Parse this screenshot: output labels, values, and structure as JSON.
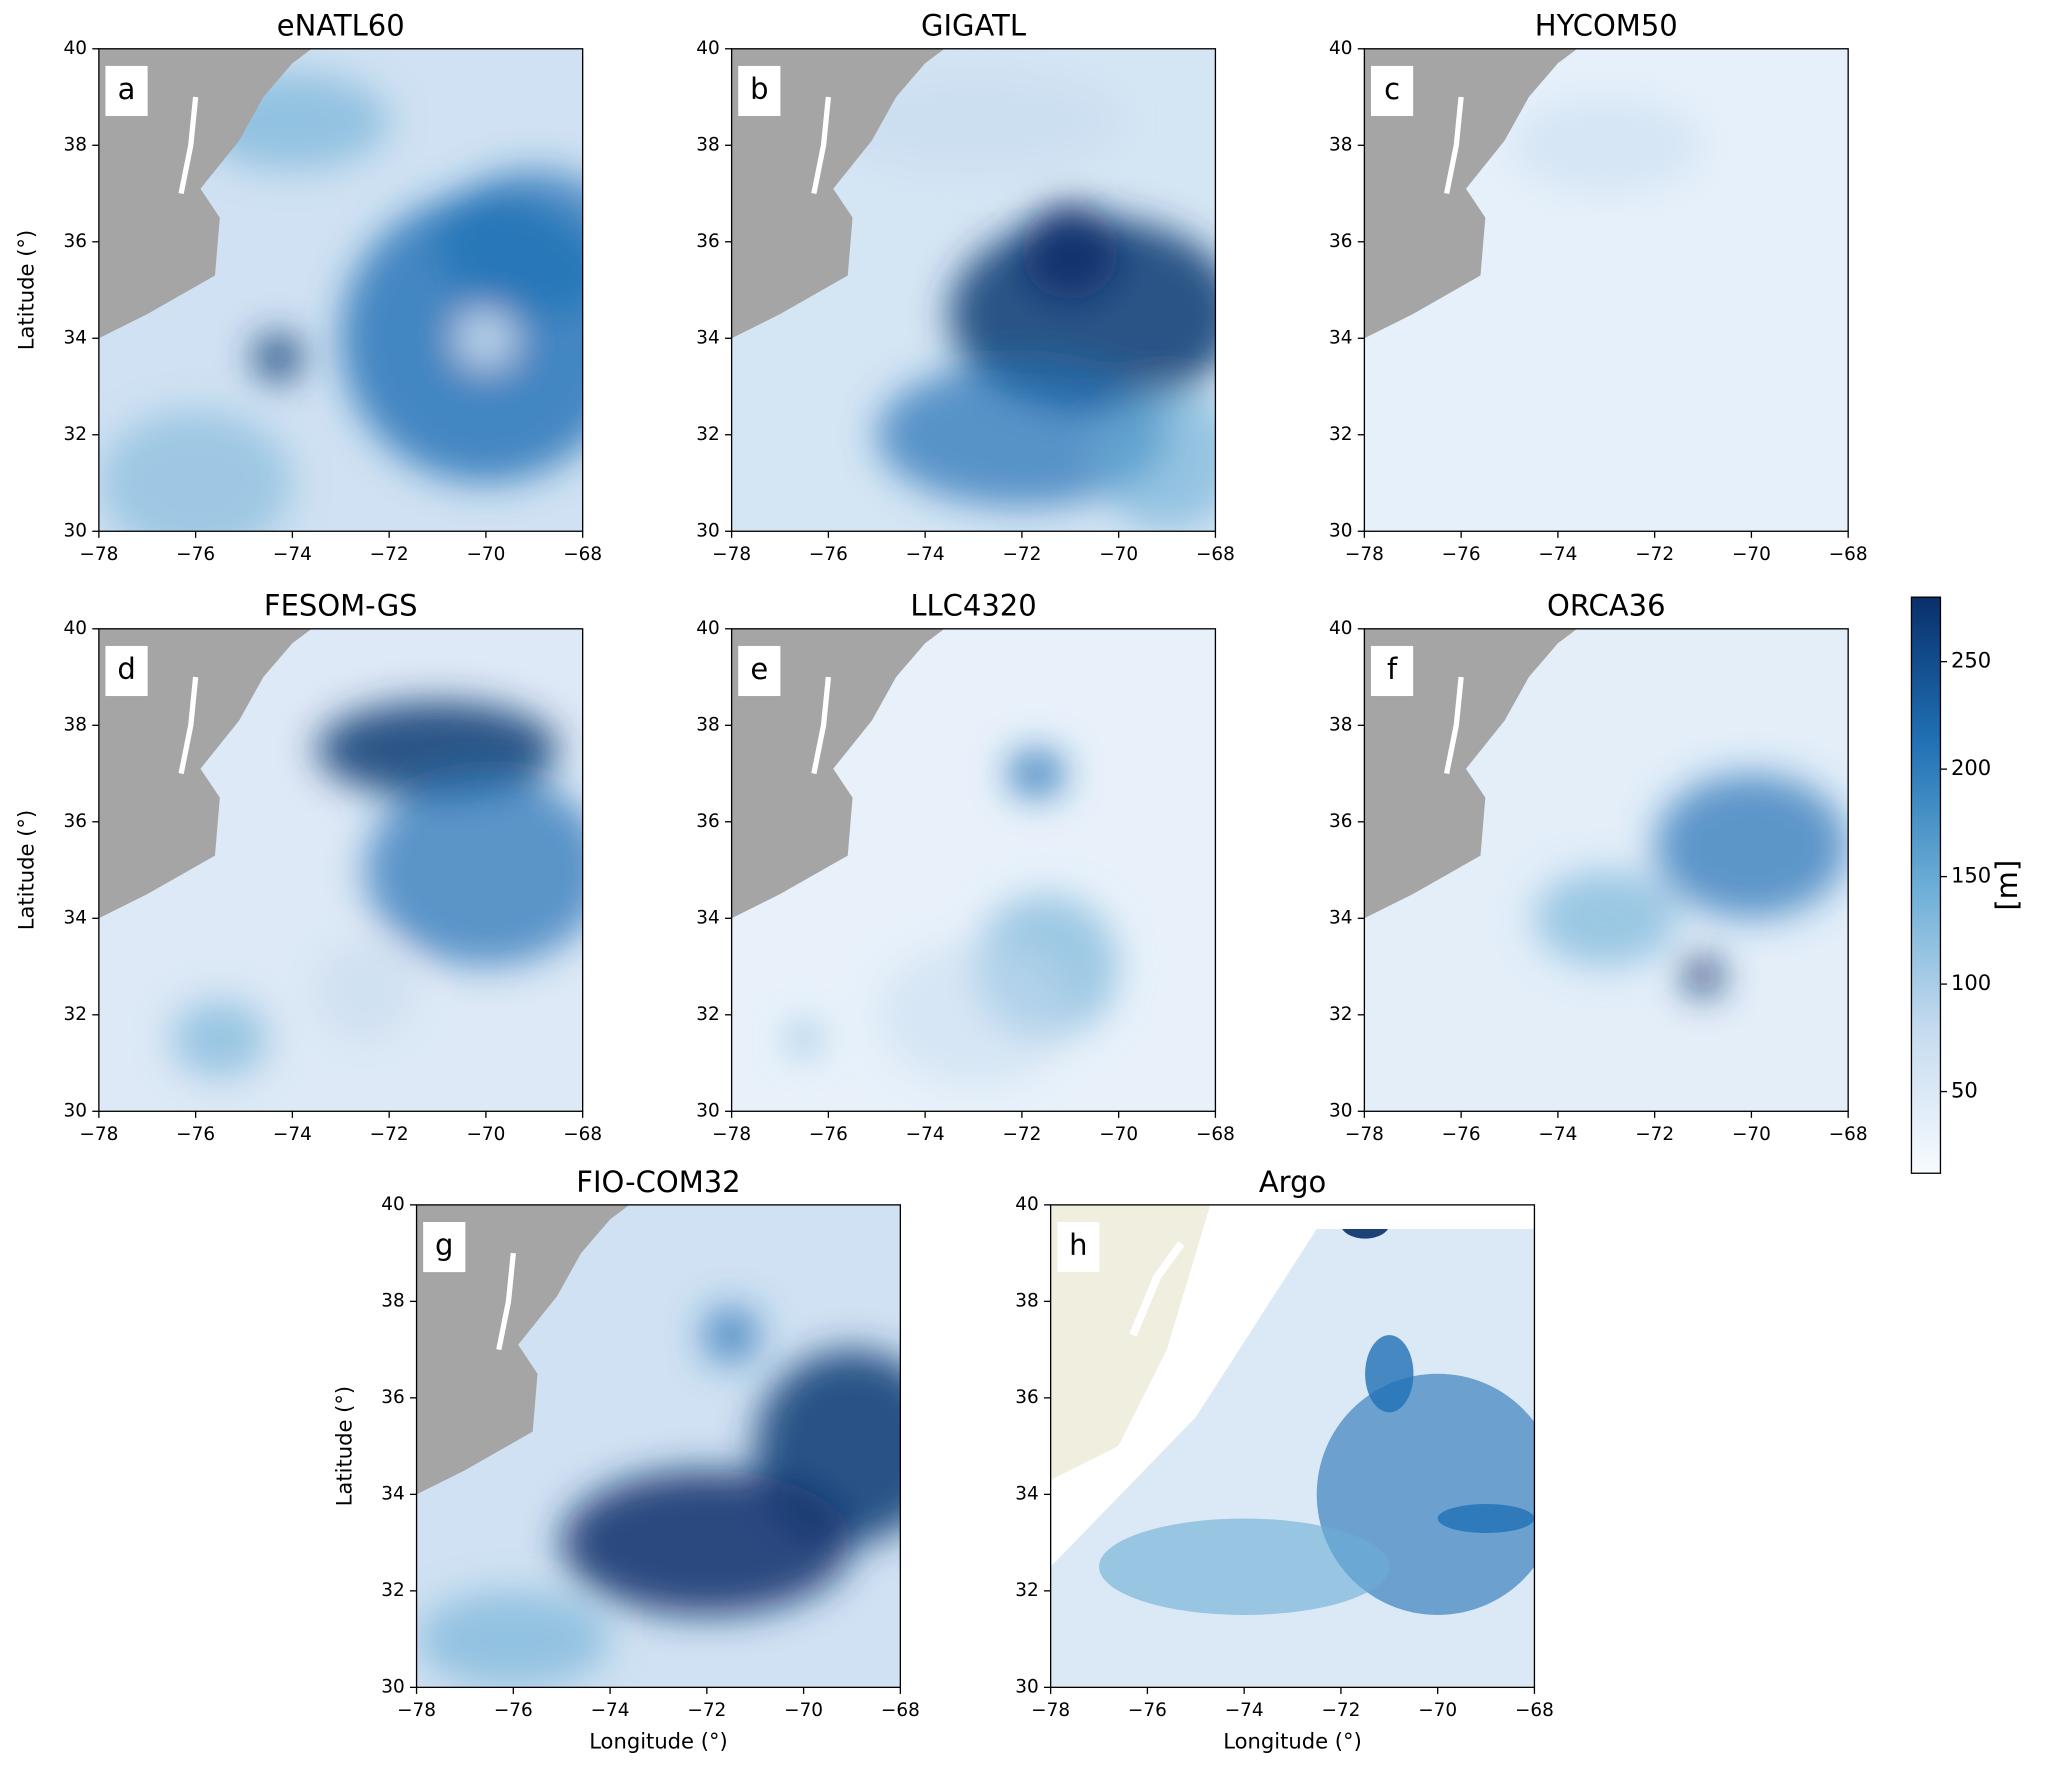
{
  "chart_data": [
    {
      "type": "map",
      "title": "eNATL60",
      "panel_label": "a",
      "ylabel": "Latitude (°)",
      "xlim": [
        -78,
        -68
      ],
      "ylim": [
        30,
        40
      ],
      "xticks": [
        {
          "value": -78,
          "label": "−78"
        },
        {
          "value": -76,
          "label": "−76"
        },
        {
          "value": -74,
          "label": "−74"
        },
        {
          "value": -72,
          "label": "−72"
        },
        {
          "value": -70,
          "label": "−70"
        },
        {
          "value": -68,
          "label": "−68"
        }
      ],
      "yticks": [
        30,
        32,
        34,
        36,
        38,
        40
      ]
    },
    {
      "type": "map",
      "title": "GIGATL",
      "panel_label": "b",
      "xlim": [
        -78,
        -68
      ],
      "ylim": [
        30,
        40
      ],
      "xticks": [
        {
          "value": -78,
          "label": "−78"
        },
        {
          "value": -76,
          "label": "−76"
        },
        {
          "value": -74,
          "label": "−74"
        },
        {
          "value": -72,
          "label": "−72"
        },
        {
          "value": -70,
          "label": "−70"
        },
        {
          "value": -68,
          "label": "−68"
        }
      ],
      "yticks": [
        30,
        32,
        34,
        36,
        38,
        40
      ]
    },
    {
      "type": "map",
      "title": "HYCOM50",
      "panel_label": "c",
      "xlim": [
        -78,
        -68
      ],
      "ylim": [
        30,
        40
      ],
      "xticks": [
        {
          "value": -78,
          "label": "−78"
        },
        {
          "value": -76,
          "label": "−76"
        },
        {
          "value": -74,
          "label": "−74"
        },
        {
          "value": -72,
          "label": "−72"
        },
        {
          "value": -70,
          "label": "−70"
        },
        {
          "value": -68,
          "label": "−68"
        }
      ],
      "yticks": [
        30,
        32,
        34,
        36,
        38,
        40
      ]
    },
    {
      "type": "map",
      "title": "FESOM-GS",
      "panel_label": "d",
      "ylabel": "Latitude (°)",
      "xlim": [
        -78,
        -68
      ],
      "ylim": [
        30,
        40
      ],
      "xticks": [
        {
          "value": -78,
          "label": "−78"
        },
        {
          "value": -76,
          "label": "−76"
        },
        {
          "value": -74,
          "label": "−74"
        },
        {
          "value": -72,
          "label": "−72"
        },
        {
          "value": -70,
          "label": "−70"
        },
        {
          "value": -68,
          "label": "−68"
        }
      ],
      "yticks": [
        30,
        32,
        34,
        36,
        38,
        40
      ]
    },
    {
      "type": "map",
      "title": "LLC4320",
      "panel_label": "e",
      "xlim": [
        -78,
        -68
      ],
      "ylim": [
        30,
        40
      ],
      "xticks": [
        {
          "value": -78,
          "label": "−78"
        },
        {
          "value": -76,
          "label": "−76"
        },
        {
          "value": -74,
          "label": "−74"
        },
        {
          "value": -72,
          "label": "−72"
        },
        {
          "value": -70,
          "label": "−70"
        },
        {
          "value": -68,
          "label": "−68"
        }
      ],
      "yticks": [
        30,
        32,
        34,
        36,
        38,
        40
      ]
    },
    {
      "type": "map",
      "title": "ORCA36",
      "panel_label": "f",
      "xlim": [
        -78,
        -68
      ],
      "ylim": [
        30,
        40
      ],
      "xticks": [
        {
          "value": -78,
          "label": "−78"
        },
        {
          "value": -76,
          "label": "−76"
        },
        {
          "value": -74,
          "label": "−74"
        },
        {
          "value": -72,
          "label": "−72"
        },
        {
          "value": -70,
          "label": "−70"
        },
        {
          "value": -68,
          "label": "−68"
        }
      ],
      "yticks": [
        30,
        32,
        34,
        36,
        38,
        40
      ]
    },
    {
      "type": "map",
      "title": "FIO-COM32",
      "panel_label": "g",
      "ylabel": "Latitude (°)",
      "xlabel": "Longitude (°)",
      "xlim": [
        -78,
        -68
      ],
      "ylim": [
        30,
        40
      ],
      "xticks": [
        {
          "value": -78,
          "label": "−78"
        },
        {
          "value": -76,
          "label": "−76"
        },
        {
          "value": -74,
          "label": "−74"
        },
        {
          "value": -72,
          "label": "−72"
        },
        {
          "value": -70,
          "label": "−70"
        },
        {
          "value": -68,
          "label": "−68"
        }
      ],
      "yticks": [
        30,
        32,
        34,
        36,
        38,
        40
      ]
    },
    {
      "type": "map",
      "title": "Argo",
      "panel_label": "h",
      "xlabel": "Longitude (°)",
      "xlim": [
        -78,
        -68
      ],
      "ylim": [
        30,
        40
      ],
      "xticks": [
        {
          "value": -78,
          "label": "−78"
        },
        {
          "value": -76,
          "label": "−76"
        },
        {
          "value": -74,
          "label": "−74"
        },
        {
          "value": -72,
          "label": "−72"
        },
        {
          "value": -70,
          "label": "−70"
        },
        {
          "value": -68,
          "label": "−68"
        }
      ],
      "yticks": [
        30,
        32,
        34,
        36,
        38,
        40
      ]
    },
    {
      "type": "colorbar",
      "label": "[m]",
      "ylim": [
        12,
        280
      ],
      "yticks": [
        50,
        100,
        150,
        200,
        250
      ],
      "colormap": [
        "#f7fbff",
        "#c6dbef",
        "#6baed6",
        "#2171b5",
        "#08306b"
      ]
    }
  ]
}
